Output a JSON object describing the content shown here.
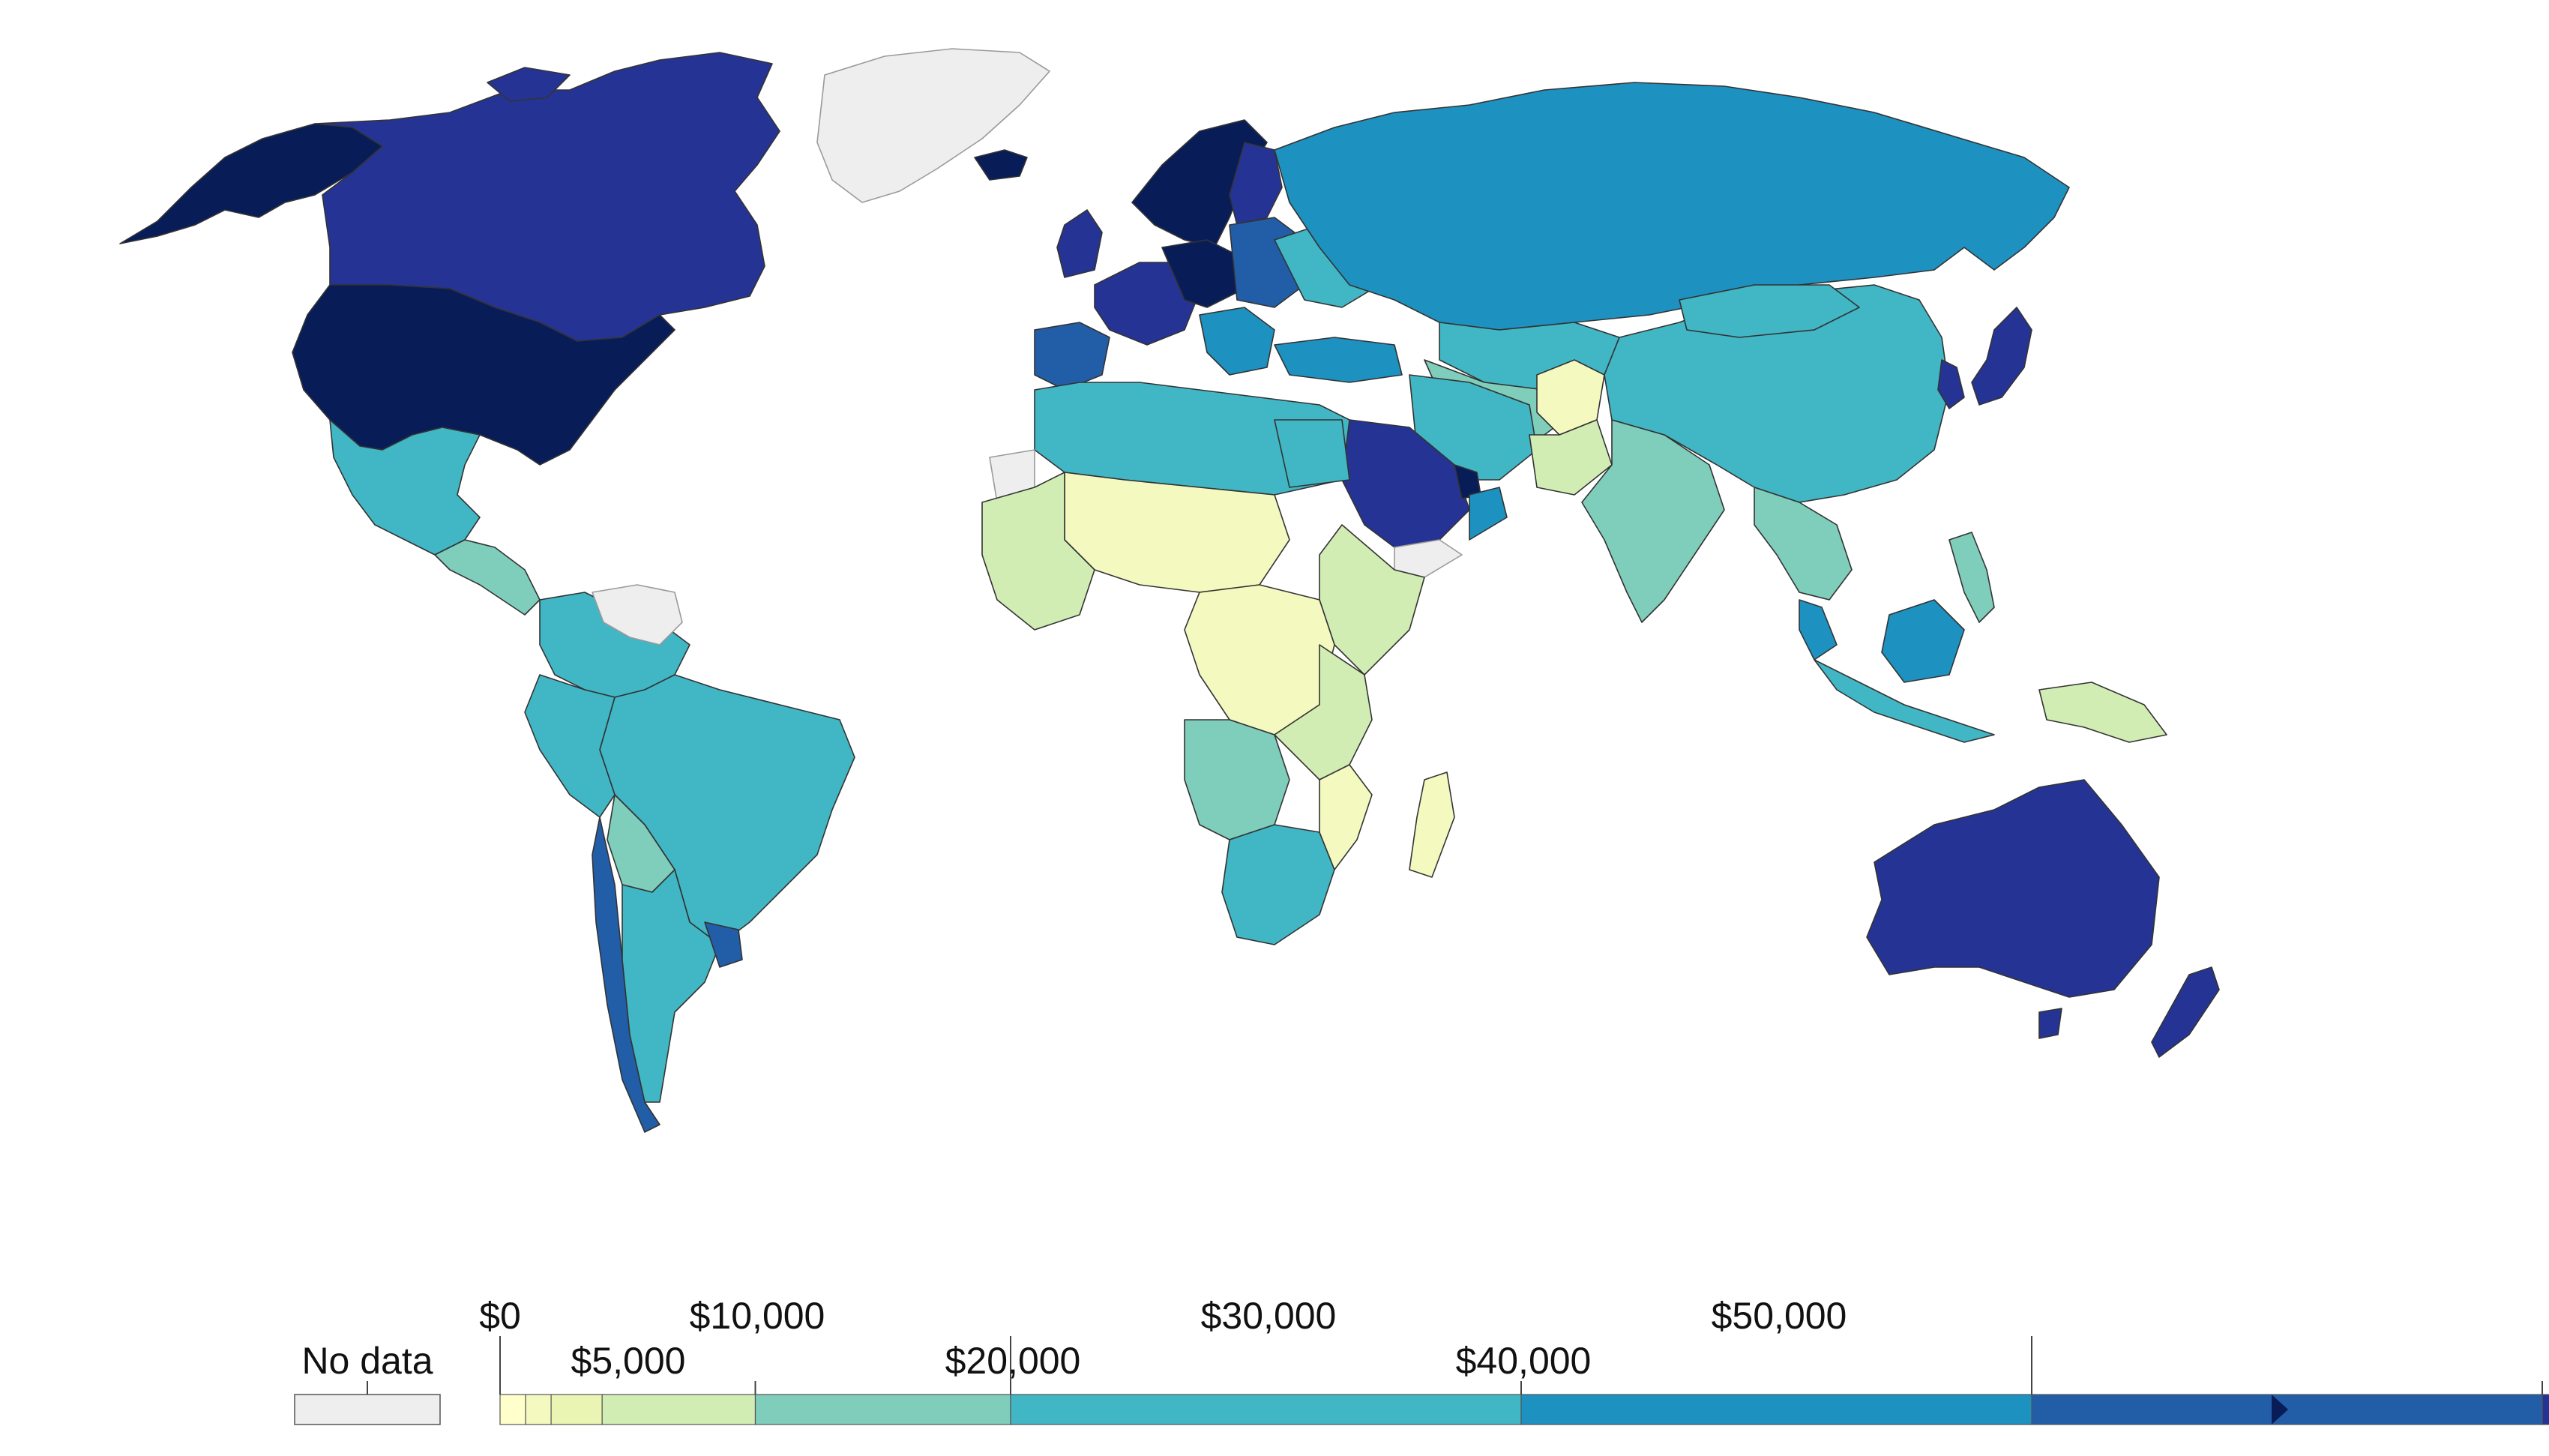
{
  "legend": {
    "no_data_label": "No data",
    "upper_labels": [
      "$0",
      "$10,000",
      "$30,000",
      "$50,000"
    ],
    "lower_labels": [
      "$5,000",
      "$20,000",
      "$40,000"
    ],
    "bins": [
      {
        "from": 0,
        "to": 500,
        "color": "#ffffcc"
      },
      {
        "from": 500,
        "to": 1000,
        "color": "#f4f9c0"
      },
      {
        "from": 1000,
        "to": 2000,
        "color": "#eaf5b4"
      },
      {
        "from": 2000,
        "to": 5000,
        "color": "#d2edb4"
      },
      {
        "from": 5000,
        "to": 10000,
        "color": "#7fcdbb"
      },
      {
        "from": 10000,
        "to": 20000,
        "color": "#41b6c4"
      },
      {
        "from": 20000,
        "to": 30000,
        "color": "#1d91c0"
      },
      {
        "from": 30000,
        "to": 40000,
        "color": "#225ea8"
      },
      {
        "from": 40000,
        "to": 50000,
        "color": "#253494"
      },
      {
        "from": 50000,
        "to": null,
        "color": "#081d58"
      }
    ],
    "no_data_color": "#eeeeee",
    "open_ended_top": true
  },
  "map_colors": {
    "very_high": "#081d58",
    "high": "#253494",
    "upper_mid": "#225ea8",
    "mid_high": "#1d91c0",
    "mid": "#41b6c4",
    "lower_mid": "#7fcdbb",
    "low": "#d2edb4",
    "very_low": "#f4f9c0",
    "no_data": "#eeeeee"
  }
}
